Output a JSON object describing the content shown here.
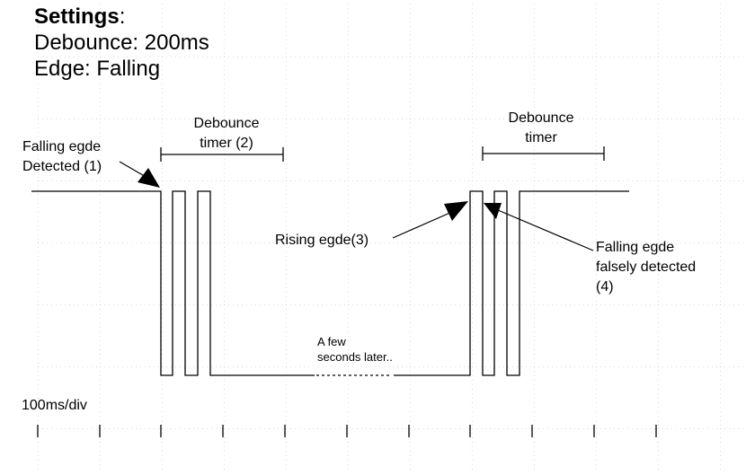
{
  "settings": {
    "title": "Settings",
    "title_suffix": ":",
    "debounce": "Debounce: 200ms",
    "edge": "Edge: Falling"
  },
  "labels": {
    "falling_edge_1": [
      "Falling egde",
      "Detected (1)"
    ],
    "debounce_timer_2": [
      "Debounce",
      "timer (2)"
    ],
    "rising_edge_3": "Rising egde(3)",
    "a_few_seconds": [
      "A few",
      "seconds later.."
    ],
    "debounce_timer": [
      "Debounce",
      "timer"
    ],
    "falling_edge_4": [
      "Falling egde",
      "falsely detected",
      "(4)"
    ],
    "timescale": "100ms/div"
  },
  "colors": {
    "line": "#000000",
    "grid": "#b0b0b0"
  }
}
